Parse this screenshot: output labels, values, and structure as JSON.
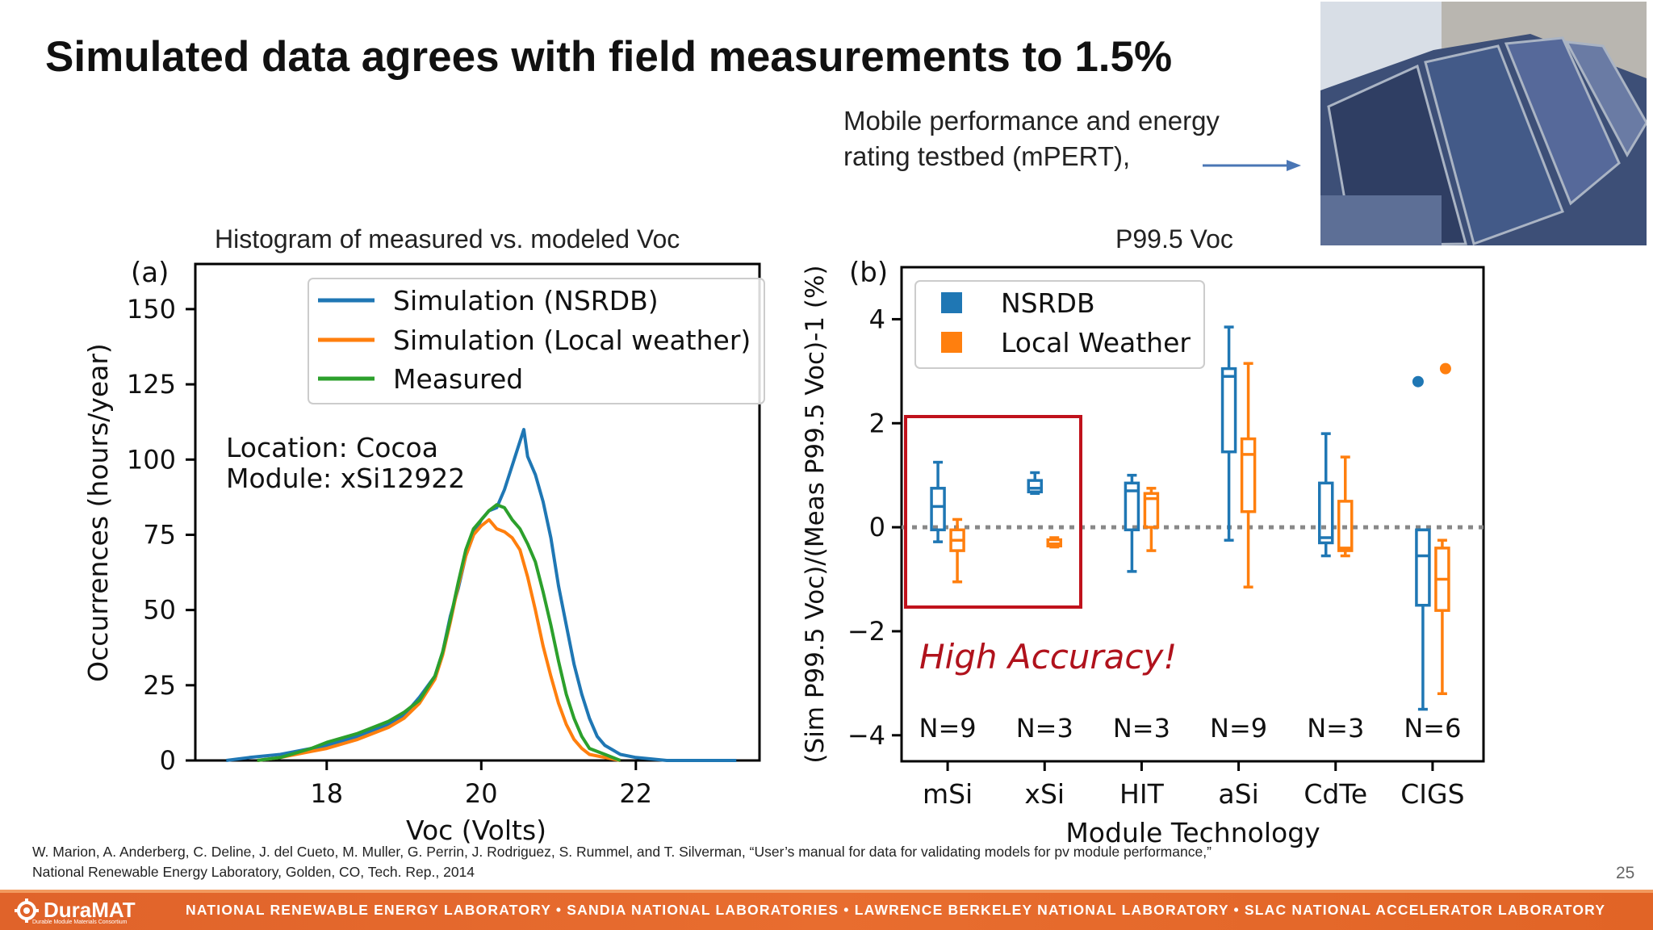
{
  "slide": {
    "title": "Simulated data agrees with field measurements to 1.5%",
    "caption_line1": "Mobile performance and energy",
    "caption_line2": "rating testbed (mPERT),",
    "left_chart_title": "Histogram of measured vs. modeled Voc",
    "right_chart_title": "P99.5 Voc",
    "reference_line1": "W. Marion, A. Anderberg, C. Deline, J. del Cueto, M. Muller, G. Perrin, J. Rodriguez, S. Rummel, and T. Silverman, “User’s manual for data for validating models for pv module performance,”",
    "reference_line2": "National Renewable Energy Laboratory, Golden, CO, Tech. Rep., 2014",
    "page_number": "25"
  },
  "footer": {
    "logo": "DuraMAT",
    "logo_sub": "Durable Module Materials Consortium",
    "labs": "NATIONAL RENEWABLE ENERGY LABORATORY  •  SANDIA NATIONAL LABORATORIES  •  LAWRENCE BERKELEY NATIONAL LABORATORY  •  SLAC NATIONAL ACCELERATOR LABORATORY"
  },
  "chart_data": [
    {
      "type": "line",
      "panel_label": "(a)",
      "xlabel": "Voc (Volts)",
      "ylabel": "Occurrences (hours/year)",
      "xlim": [
        16.3,
        23.6
      ],
      "ylim": [
        0,
        165
      ],
      "xticks": [
        18,
        20,
        22
      ],
      "yticks": [
        0,
        25,
        50,
        75,
        100,
        125,
        150
      ],
      "annotation_line1": "Location: Cocoa",
      "annotation_line2": "Module: xSi12922",
      "legend_position": "upper right",
      "series": [
        {
          "name": "Simulation (NSRDB)",
          "color": "#1f77b4",
          "points": [
            [
              16.7,
              0
            ],
            [
              17.0,
              1
            ],
            [
              17.4,
              2
            ],
            [
              17.8,
              4
            ],
            [
              18.0,
              5
            ],
            [
              18.4,
              8
            ],
            [
              18.8,
              12
            ],
            [
              19.0,
              15
            ],
            [
              19.2,
              21
            ],
            [
              19.4,
              28
            ],
            [
              19.5,
              36
            ],
            [
              19.6,
              48
            ],
            [
              19.7,
              57
            ],
            [
              19.8,
              68
            ],
            [
              19.9,
              75
            ],
            [
              20.0,
              80
            ],
            [
              20.1,
              83
            ],
            [
              20.2,
              84
            ],
            [
              20.3,
              90
            ],
            [
              20.4,
              98
            ],
            [
              20.5,
              106
            ],
            [
              20.55,
              110
            ],
            [
              20.6,
              101
            ],
            [
              20.7,
              95
            ],
            [
              20.8,
              86
            ],
            [
              20.9,
              74
            ],
            [
              21.0,
              58
            ],
            [
              21.1,
              45
            ],
            [
              21.2,
              32
            ],
            [
              21.3,
              22
            ],
            [
              21.4,
              14
            ],
            [
              21.5,
              8
            ],
            [
              21.6,
              5
            ],
            [
              21.8,
              2
            ],
            [
              22.0,
              1
            ],
            [
              22.4,
              0
            ],
            [
              23.3,
              0
            ]
          ]
        },
        {
          "name": "Simulation (Local weather)",
          "color": "#ff7f0e",
          "points": [
            [
              17.1,
              0
            ],
            [
              17.4,
              1
            ],
            [
              17.8,
              3
            ],
            [
              18.0,
              4
            ],
            [
              18.4,
              7
            ],
            [
              18.8,
              11
            ],
            [
              19.0,
              14
            ],
            [
              19.2,
              19
            ],
            [
              19.4,
              27
            ],
            [
              19.5,
              35
            ],
            [
              19.6,
              46
            ],
            [
              19.7,
              58
            ],
            [
              19.8,
              68
            ],
            [
              19.9,
              75
            ],
            [
              20.0,
              78
            ],
            [
              20.1,
              80
            ],
            [
              20.2,
              77
            ],
            [
              20.3,
              76
            ],
            [
              20.4,
              74
            ],
            [
              20.5,
              70
            ],
            [
              20.6,
              61
            ],
            [
              20.7,
              50
            ],
            [
              20.8,
              38
            ],
            [
              20.9,
              28
            ],
            [
              21.0,
              19
            ],
            [
              21.1,
              12
            ],
            [
              21.2,
              7
            ],
            [
              21.3,
              4
            ],
            [
              21.4,
              2
            ],
            [
              21.6,
              1
            ],
            [
              21.8,
              0
            ]
          ]
        },
        {
          "name": "Measured",
          "color": "#2ca02c",
          "points": [
            [
              17.1,
              0
            ],
            [
              17.4,
              1
            ],
            [
              17.8,
              4
            ],
            [
              18.0,
              6
            ],
            [
              18.4,
              9
            ],
            [
              18.8,
              13
            ],
            [
              19.0,
              16
            ],
            [
              19.2,
              20
            ],
            [
              19.4,
              28
            ],
            [
              19.5,
              36
            ],
            [
              19.6,
              47
            ],
            [
              19.7,
              59
            ],
            [
              19.8,
              70
            ],
            [
              19.9,
              77
            ],
            [
              20.0,
              80
            ],
            [
              20.1,
              83
            ],
            [
              20.2,
              85
            ],
            [
              20.3,
              84
            ],
            [
              20.4,
              80
            ],
            [
              20.5,
              77
            ],
            [
              20.6,
              72
            ],
            [
              20.7,
              66
            ],
            [
              20.8,
              56
            ],
            [
              20.9,
              45
            ],
            [
              21.0,
              33
            ],
            [
              21.1,
              22
            ],
            [
              21.2,
              14
            ],
            [
              21.3,
              8
            ],
            [
              21.4,
              4
            ],
            [
              21.6,
              2
            ],
            [
              21.8,
              0
            ]
          ]
        }
      ]
    },
    {
      "type": "box",
      "panel_label": "(b)",
      "xlabel": "Module Technology",
      "ylabel": "(Sim P99.5 Voc)/(Meas P99.5 Voc)-1 (%)",
      "ylim": [
        -4.5,
        5
      ],
      "yticks": [
        4,
        2,
        0,
        -2,
        -4
      ],
      "categories": [
        "mSi",
        "xSi",
        "HIT",
        "aSi",
        "CdTe",
        "CIGS"
      ],
      "n_labels": [
        "N=9",
        "N=3",
        "N=3",
        "N=9",
        "N=3",
        "N=6"
      ],
      "reference_line": 0,
      "highlight_text": "High Accuracy!",
      "highlight_categories": [
        "mSi",
        "xSi"
      ],
      "legend_position": "upper left",
      "series": [
        {
          "name": "NSRDB",
          "color": "#1f77b4",
          "boxes": [
            {
              "min": -0.28,
              "q1": -0.05,
              "median": 0.4,
              "q3": 0.75,
              "max": 1.25
            },
            {
              "min": 0.65,
              "q1": 0.68,
              "median": 0.75,
              "q3": 0.9,
              "max": 1.05
            },
            {
              "min": -0.85,
              "q1": -0.05,
              "median": 0.7,
              "q3": 0.85,
              "max": 1.0
            },
            {
              "min": -0.25,
              "q1": 1.45,
              "median": 2.9,
              "q3": 3.05,
              "max": 3.85
            },
            {
              "min": -0.55,
              "q1": -0.3,
              "median": -0.2,
              "q3": 0.85,
              "max": 1.8
            },
            {
              "min": -3.5,
              "q1": -1.5,
              "median": -0.55,
              "q3": -0.05,
              "max": -0.05,
              "outliers": [
                2.8
              ]
            }
          ]
        },
        {
          "name": "Local Weather",
          "color": "#ff7f0e",
          "boxes": [
            {
              "min": -1.05,
              "q1": -0.45,
              "median": -0.25,
              "q3": -0.05,
              "max": 0.15
            },
            {
              "min": -0.38,
              "q1": -0.36,
              "median": -0.32,
              "q3": -0.24,
              "max": -0.2
            },
            {
              "min": -0.45,
              "q1": 0.0,
              "median": 0.55,
              "q3": 0.65,
              "max": 0.75
            },
            {
              "min": -1.15,
              "q1": 0.3,
              "median": 1.4,
              "q3": 1.7,
              "max": 3.15
            },
            {
              "min": -0.55,
              "q1": -0.45,
              "median": -0.4,
              "q3": 0.5,
              "max": 1.35
            },
            {
              "min": -3.2,
              "q1": -1.6,
              "median": -1.0,
              "q3": -0.4,
              "max": -0.25,
              "outliers": [
                3.05
              ]
            }
          ]
        }
      ]
    }
  ]
}
